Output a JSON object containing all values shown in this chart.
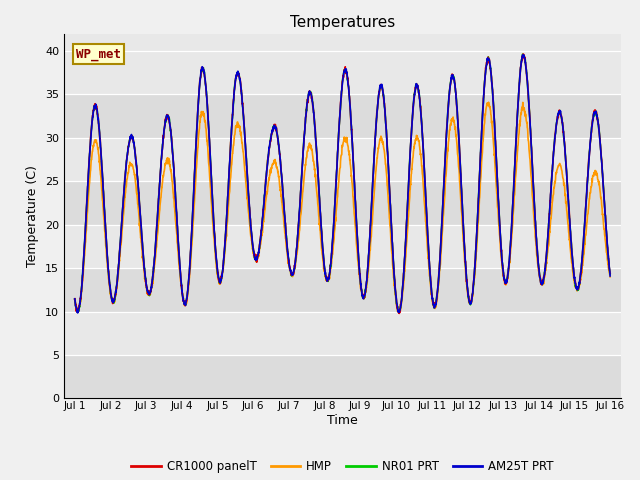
{
  "title": "Temperatures",
  "xlabel": "Time",
  "ylabel": "Temperature (C)",
  "ylim": [
    0,
    42
  ],
  "yticks": [
    0,
    5,
    10,
    15,
    20,
    25,
    30,
    35,
    40
  ],
  "annotation": "WP_met",
  "legend": [
    "CR1000 panelT",
    "HMP",
    "NR01 PRT",
    "AM25T PRT"
  ],
  "colors": [
    "#dd0000",
    "#ff9900",
    "#00cc00",
    "#0000cc"
  ],
  "fig_facecolor": "#f0f0f0",
  "plot_bg_color": "#e8e8e8",
  "linewidth": 1.2,
  "day_mins_base": [
    10,
    12,
    12,
    10,
    16,
    16,
    13,
    14,
    10,
    10,
    11,
    11,
    15,
    12,
    13
  ],
  "day_maxs_cr": [
    34,
    30,
    32,
    38,
    38,
    31,
    35,
    38,
    36,
    36,
    37,
    39,
    40,
    33,
    33
  ],
  "day_maxs_hmp": [
    30,
    27,
    27,
    33,
    32,
    27,
    29,
    30,
    30,
    30,
    32,
    34,
    34,
    27,
    26
  ]
}
